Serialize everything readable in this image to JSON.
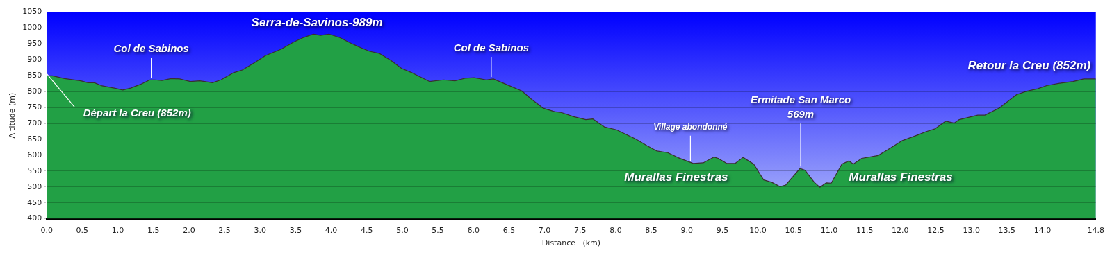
{
  "chart_data": {
    "type": "area",
    "xlabel": "Distance   (km)",
    "ylabel": "Altitude (m)",
    "x": [
      0,
      0.08,
      0.25,
      0.48,
      0.58,
      0.67,
      0.78,
      0.95,
      1.07,
      1.18,
      1.32,
      1.45,
      1.52,
      1.62,
      1.75,
      1.87,
      2.02,
      2.15,
      2.22,
      2.33,
      2.45,
      2.62,
      2.75,
      2.92,
      3.08,
      3.3,
      3.48,
      3.62,
      3.75,
      3.85,
      3.97,
      4.12,
      4.28,
      4.42,
      4.54,
      4.68,
      4.84,
      4.99,
      5.14,
      5.38,
      5.58,
      5.74,
      5.88,
      6.01,
      6.18,
      6.28,
      6.48,
      6.68,
      6.81,
      6.98,
      7.14,
      7.24,
      7.41,
      7.58,
      7.68,
      7.84,
      8.01,
      8.28,
      8.44,
      8.58,
      8.73,
      8.88,
      9.09,
      9.23,
      9.38,
      9.44,
      9.56,
      9.68,
      9.79,
      9.94,
      10.08,
      10.19,
      10.31,
      10.39,
      10.59,
      10.66,
      10.79,
      10.87,
      10.96,
      11.03,
      11.18,
      11.28,
      11.34,
      11.46,
      11.69,
      11.86,
      12.03,
      12.26,
      12.36,
      12.49,
      12.64,
      12.76,
      12.83,
      12.96,
      13.09,
      13.19,
      13.39,
      13.64,
      13.79,
      13.93,
      14.06,
      14.26,
      14.43,
      14.58,
      14.75
    ],
    "series": [
      {
        "color": "#22a045",
        "values": [
          850,
          850,
          841,
          834,
          828,
          828,
          818,
          811,
          805,
          811,
          823,
          837,
          837,
          835,
          841,
          840,
          832,
          834,
          832,
          828,
          837,
          859,
          868,
          891,
          914,
          934,
          957,
          971,
          981,
          977,
          981,
          970,
          952,
          938,
          927,
          920,
          898,
          873,
          859,
          832,
          837,
          834,
          842,
          844,
          837,
          840,
          821,
          802,
          777,
          748,
          737,
          734,
          721,
          712,
          714,
          689,
          680,
          651,
          630,
          613,
          608,
          592,
          574,
          576,
          594,
          590,
          574,
          574,
          593,
          572,
          522,
          515,
          501,
          506,
          558,
          553,
          515,
          499,
          513,
          512,
          572,
          582,
          572,
          590,
          599,
          622,
          646,
          665,
          674,
          683,
          707,
          701,
          712,
          719,
          726,
          726,
          748,
          791,
          802,
          809,
          819,
          827,
          832,
          840,
          840
        ]
      }
    ],
    "xlim": [
      0,
      14.75
    ],
    "xticks": [
      {
        "value": 0,
        "label": "0.0"
      },
      {
        "value": 0.5,
        "label": "0.5"
      },
      {
        "value": 1,
        "label": "1.0"
      },
      {
        "value": 1.5,
        "label": "1.5"
      },
      {
        "value": 2,
        "label": "2.0"
      },
      {
        "value": 2.5,
        "label": "2.5"
      },
      {
        "value": 3,
        "label": "3.0"
      },
      {
        "value": 3.5,
        "label": "3.5"
      },
      {
        "value": 4,
        "label": "4.0"
      },
      {
        "value": 4.5,
        "label": "4.5"
      },
      {
        "value": 5,
        "label": "5.0"
      },
      {
        "value": 5.5,
        "label": "5.5"
      },
      {
        "value": 6,
        "label": "6.0"
      },
      {
        "value": 6.5,
        "label": "6.5"
      },
      {
        "value": 7,
        "label": "7.0"
      },
      {
        "value": 7.5,
        "label": "7.5"
      },
      {
        "value": 8,
        "label": "8.0"
      },
      {
        "value": 8.5,
        "label": "8.5"
      },
      {
        "value": 9,
        "label": "9.0"
      },
      {
        "value": 9.5,
        "label": "9.5"
      },
      {
        "value": 10,
        "label": "10.0"
      },
      {
        "value": 10.5,
        "label": "10.5"
      },
      {
        "value": 11,
        "label": "11.0"
      },
      {
        "value": 11.5,
        "label": "11.5"
      },
      {
        "value": 12,
        "label": "12.0"
      },
      {
        "value": 12.5,
        "label": "12.5"
      },
      {
        "value": 13,
        "label": "13.0"
      },
      {
        "value": 13.5,
        "label": "13.5"
      },
      {
        "value": 14,
        "label": "14.0"
      },
      {
        "value": 14.75,
        "label": "14.8"
      }
    ],
    "ylim": [
      400,
      1050
    ],
    "yticks": [
      400,
      450,
      500,
      550,
      600,
      650,
      700,
      750,
      800,
      850,
      900,
      950,
      1000,
      1050
    ],
    "grid": "y",
    "legend": false,
    "annotations": [
      {
        "text": "Serra-de-Savinos-989m",
        "x": 3.8,
        "y": 981
      },
      {
        "text": "Col de Sabinos",
        "x": 1.47,
        "y": 837
      },
      {
        "text": "Col de Sabinos",
        "x": 6.25,
        "y": 840
      },
      {
        "text": "Départ la Creu (852m)",
        "x": 0,
        "y": 850
      },
      {
        "text": "Village abondonné",
        "x": 9.05,
        "y": 574
      },
      {
        "text": "Ermitade San Marco\n569m",
        "x": 10.6,
        "y": 558
      },
      "Murallas Finestras",
      "Murallas Finestras",
      "Retour la Creu (852m)"
    ]
  }
}
